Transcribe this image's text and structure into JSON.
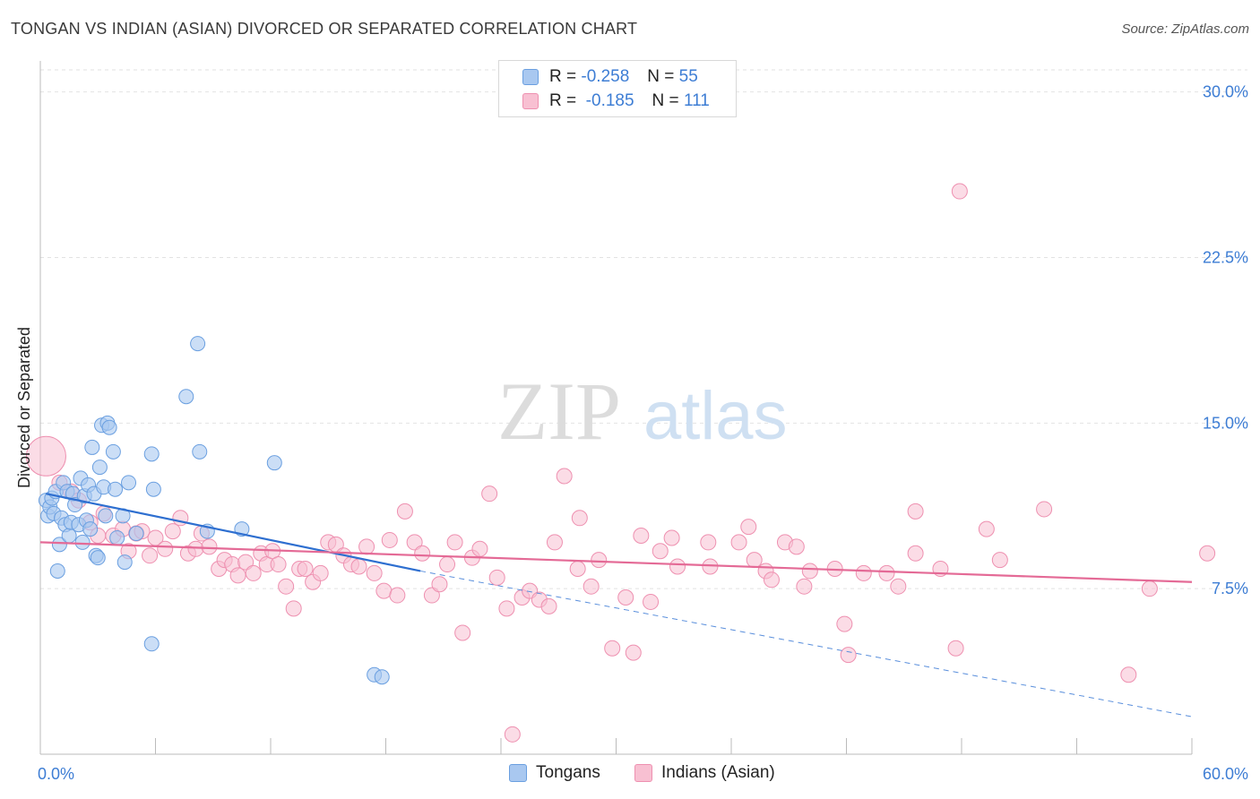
{
  "title": "TONGAN VS INDIAN (ASIAN) DIVORCED OR SEPARATED CORRELATION CHART",
  "source": "Source: ZipAtlas.com",
  "watermark": {
    "zip": "ZIP",
    "atlas": "atlas"
  },
  "legend": {
    "rows": [
      {
        "r_label": "R =",
        "r_value": "-0.258",
        "n_label": "N =",
        "n_value": "55",
        "color": "#a9c8f0",
        "border": "#6a9fe0"
      },
      {
        "r_label": "R =",
        "r_value": "-0.185",
        "n_label": "N =",
        "n_value": "111",
        "color": "#f8c0d2",
        "border": "#ee90b0"
      }
    ]
  },
  "bottom_legend": {
    "items": [
      {
        "label": "Tongans",
        "color": "#a9c8f0",
        "border": "#6a9fe0"
      },
      {
        "label": "Indians (Asian)",
        "color": "#f8c0d2",
        "border": "#ee90b0"
      }
    ]
  },
  "chart_data": {
    "type": "scatter",
    "ylabel": "Divorced or Separated",
    "xlim": [
      0,
      60
    ],
    "ylim": [
      0,
      31
    ],
    "x_tick_labels": [
      {
        "value": 0,
        "label": "0.0%"
      },
      {
        "value": 60,
        "label": "60.0%"
      }
    ],
    "y_tick_labels": [
      {
        "value": 7.5,
        "label": "7.5%"
      },
      {
        "value": 15,
        "label": "15.0%"
      },
      {
        "value": 22.5,
        "label": "22.5%"
      },
      {
        "value": 30,
        "label": "30.0%"
      }
    ],
    "grid": true,
    "series": [
      {
        "name": "Tongans",
        "color": "#6a9fe0",
        "fill": "#a9c8f0",
        "trend": {
          "x0": 0.3,
          "y0": 11.8,
          "x1": 19.8,
          "y1": 8.3,
          "dash_to_x": 60,
          "dash_to_y": 1.7
        },
        "points": [
          [
            0.3,
            11.5
          ],
          [
            0.4,
            10.8
          ],
          [
            0.5,
            11.2
          ],
          [
            0.6,
            11.6
          ],
          [
            0.7,
            10.9
          ],
          [
            0.8,
            11.9
          ],
          [
            0.9,
            8.3
          ],
          [
            1.0,
            9.5
          ],
          [
            1.1,
            10.7
          ],
          [
            1.2,
            12.3
          ],
          [
            1.3,
            10.4
          ],
          [
            1.4,
            11.9
          ],
          [
            1.5,
            9.9
          ],
          [
            1.6,
            10.5
          ],
          [
            1.7,
            11.8
          ],
          [
            1.8,
            11.3
          ],
          [
            2.0,
            10.4
          ],
          [
            2.1,
            12.5
          ],
          [
            2.2,
            9.6
          ],
          [
            2.3,
            11.7
          ],
          [
            2.4,
            10.6
          ],
          [
            2.5,
            12.2
          ],
          [
            2.6,
            10.2
          ],
          [
            2.7,
            13.9
          ],
          [
            2.8,
            11.8
          ],
          [
            2.9,
            9.0
          ],
          [
            3.0,
            8.9
          ],
          [
            3.1,
            13.0
          ],
          [
            3.2,
            14.9
          ],
          [
            3.3,
            12.1
          ],
          [
            3.4,
            10.8
          ],
          [
            3.5,
            15.0
          ],
          [
            3.6,
            14.8
          ],
          [
            3.8,
            13.7
          ],
          [
            3.9,
            12.0
          ],
          [
            4.0,
            9.8
          ],
          [
            4.3,
            10.8
          ],
          [
            4.4,
            8.7
          ],
          [
            4.6,
            12.3
          ],
          [
            5.0,
            10.0
          ],
          [
            5.8,
            13.6
          ],
          [
            5.9,
            12.0
          ],
          [
            5.8,
            5.0
          ],
          [
            7.6,
            16.2
          ],
          [
            8.2,
            18.6
          ],
          [
            8.3,
            13.7
          ],
          [
            8.7,
            10.1
          ],
          [
            10.5,
            10.2
          ],
          [
            12.2,
            13.2
          ],
          [
            17.4,
            3.6
          ],
          [
            17.8,
            3.5
          ]
        ]
      },
      {
        "name": "Indians (Asian)",
        "color": "#ee90b0",
        "fill": "#f8c0d2",
        "trend": {
          "x0": 0,
          "y0": 9.6,
          "x1": 60,
          "y1": 7.8
        },
        "points": [
          [
            0.3,
            13.5
          ],
          [
            1.0,
            12.3
          ],
          [
            1.6,
            11.9
          ],
          [
            2.0,
            11.5
          ],
          [
            2.6,
            10.5
          ],
          [
            3.0,
            9.9
          ],
          [
            3.3,
            10.9
          ],
          [
            3.8,
            9.9
          ],
          [
            4.3,
            10.2
          ],
          [
            4.6,
            9.2
          ],
          [
            5.0,
            10.0
          ],
          [
            5.3,
            10.1
          ],
          [
            5.7,
            9.0
          ],
          [
            6.0,
            9.8
          ],
          [
            6.5,
            9.3
          ],
          [
            6.9,
            10.1
          ],
          [
            7.3,
            10.7
          ],
          [
            7.7,
            9.1
          ],
          [
            8.1,
            9.3
          ],
          [
            8.4,
            10.0
          ],
          [
            8.8,
            9.4
          ],
          [
            9.3,
            8.4
          ],
          [
            9.6,
            8.8
          ],
          [
            10.0,
            8.6
          ],
          [
            10.3,
            8.1
          ],
          [
            10.7,
            8.7
          ],
          [
            11.1,
            8.2
          ],
          [
            11.5,
            9.1
          ],
          [
            11.8,
            8.6
          ],
          [
            12.1,
            9.2
          ],
          [
            12.4,
            8.6
          ],
          [
            12.8,
            7.6
          ],
          [
            13.2,
            6.6
          ],
          [
            13.5,
            8.4
          ],
          [
            13.8,
            8.4
          ],
          [
            14.2,
            7.8
          ],
          [
            14.6,
            8.2
          ],
          [
            15.0,
            9.6
          ],
          [
            15.4,
            9.5
          ],
          [
            15.8,
            9.0
          ],
          [
            16.2,
            8.6
          ],
          [
            16.6,
            8.5
          ],
          [
            17.0,
            9.4
          ],
          [
            17.4,
            8.2
          ],
          [
            17.9,
            7.4
          ],
          [
            18.2,
            9.7
          ],
          [
            18.6,
            7.2
          ],
          [
            19.0,
            11.0
          ],
          [
            19.5,
            9.6
          ],
          [
            19.9,
            9.1
          ],
          [
            20.4,
            7.2
          ],
          [
            20.8,
            7.7
          ],
          [
            21.2,
            8.6
          ],
          [
            21.6,
            9.6
          ],
          [
            22.0,
            5.5
          ],
          [
            22.5,
            8.9
          ],
          [
            22.9,
            9.3
          ],
          [
            23.4,
            11.8
          ],
          [
            23.8,
            8.0
          ],
          [
            24.3,
            6.6
          ],
          [
            24.6,
            0.9
          ],
          [
            25.1,
            7.1
          ],
          [
            25.5,
            7.4
          ],
          [
            26.0,
            7.0
          ],
          [
            26.5,
            6.7
          ],
          [
            26.8,
            9.6
          ],
          [
            27.3,
            12.6
          ],
          [
            28.0,
            8.4
          ],
          [
            28.1,
            10.7
          ],
          [
            28.7,
            7.6
          ],
          [
            29.1,
            8.8
          ],
          [
            29.8,
            4.8
          ],
          [
            30.5,
            7.1
          ],
          [
            30.9,
            4.6
          ],
          [
            31.3,
            9.9
          ],
          [
            31.8,
            6.9
          ],
          [
            32.3,
            9.2
          ],
          [
            32.9,
            9.8
          ],
          [
            33.2,
            8.5
          ],
          [
            34.8,
            9.6
          ],
          [
            34.9,
            8.5
          ],
          [
            36.4,
            9.6
          ],
          [
            36.9,
            10.3
          ],
          [
            37.2,
            8.8
          ],
          [
            37.8,
            8.3
          ],
          [
            38.1,
            7.9
          ],
          [
            38.8,
            9.6
          ],
          [
            39.4,
            9.4
          ],
          [
            39.8,
            7.6
          ],
          [
            40.1,
            8.3
          ],
          [
            41.4,
            8.4
          ],
          [
            41.9,
            5.9
          ],
          [
            42.1,
            4.5
          ],
          [
            42.9,
            8.2
          ],
          [
            44.1,
            8.2
          ],
          [
            44.7,
            7.6
          ],
          [
            45.6,
            11.0
          ],
          [
            45.6,
            9.1
          ],
          [
            46.9,
            8.4
          ],
          [
            47.7,
            4.8
          ],
          [
            47.9,
            25.5
          ],
          [
            49.3,
            10.2
          ],
          [
            50.0,
            8.8
          ],
          [
            52.3,
            11.1
          ],
          [
            56.7,
            3.6
          ],
          [
            57.8,
            7.5
          ],
          [
            60.8,
            9.1
          ]
        ]
      }
    ]
  }
}
